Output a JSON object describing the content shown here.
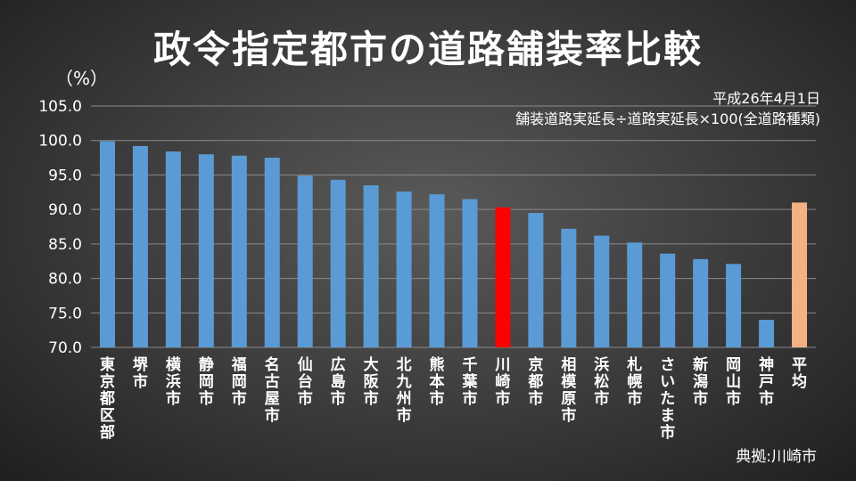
{
  "title": "政令指定都市の道路舗装率比較",
  "unit": "（%）",
  "note_date": "平成26年4月1日",
  "note_formula": "舗装道路実延長÷道路実延長×100(全道路種類)",
  "source": "典拠:川崎市",
  "colors": {
    "default_bar": "#5b9bd5",
    "highlight_bar": "#ff0000",
    "average_bar": "#f4b183"
  },
  "chart_data": {
    "type": "bar",
    "title": "政令指定都市の道路舗装率比較",
    "ylabel": "（%）",
    "xlabel": "",
    "ylim": [
      70,
      105
    ],
    "yticks": [
      "70.0",
      "75.0",
      "80.0",
      "85.0",
      "90.0",
      "95.0",
      "100.0",
      "105.0"
    ],
    "grid": true,
    "categories": [
      "東京都区部",
      "堺市",
      "横浜市",
      "静岡市",
      "福岡市",
      "名古屋市",
      "仙台市",
      "広島市",
      "大阪市",
      "北九州市",
      "熊本市",
      "千葉市",
      "川崎市",
      "京都市",
      "相模原市",
      "浜松市",
      "札幌市",
      "さいたま市",
      "新潟市",
      "岡山市",
      "神戸市",
      "平均"
    ],
    "values": [
      99.9,
      99.2,
      98.4,
      98.0,
      97.8,
      97.5,
      94.9,
      94.3,
      93.5,
      92.6,
      92.2,
      91.5,
      90.3,
      89.5,
      87.2,
      86.2,
      85.2,
      83.6,
      82.8,
      82.1,
      74.0,
      91.0
    ],
    "highlight": [
      "default",
      "default",
      "default",
      "default",
      "default",
      "default",
      "default",
      "default",
      "default",
      "default",
      "default",
      "default",
      "highlight",
      "default",
      "default",
      "default",
      "default",
      "default",
      "default",
      "default",
      "default",
      "average"
    ]
  }
}
